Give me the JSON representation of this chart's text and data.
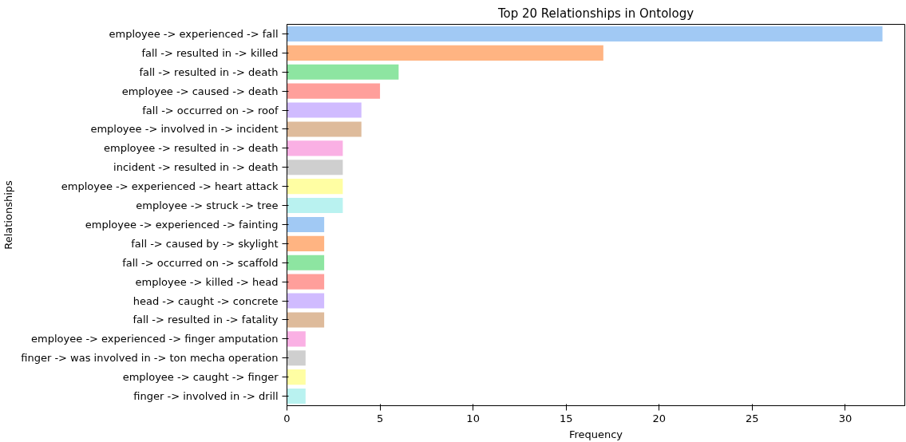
{
  "chart_data": {
    "type": "bar",
    "orientation": "horizontal",
    "title": "Top 20 Relationships in Ontology",
    "xlabel": "Frequency",
    "ylabel": "Relationships",
    "categories": [
      "employee -> experienced -> fall",
      "fall -> resulted in -> killed",
      "fall -> resulted in -> death",
      "employee -> caused -> death",
      "fall -> occurred on -> roof",
      "employee -> involved in -> incident",
      "employee -> resulted in -> death",
      "incident -> resulted in -> death",
      "employee -> experienced -> heart attack",
      "employee -> struck -> tree",
      "employee -> experienced -> fainting",
      "fall -> caused by -> skylight",
      "fall -> occurred on -> scaffold",
      "employee -> killed -> head",
      "head -> caught -> concrete",
      "fall -> resulted in -> fatality",
      "employee -> experienced -> finger amputation",
      "finger -> was involved in -> ton mecha operation",
      "employee -> caught -> finger",
      "finger -> involved in -> drill"
    ],
    "values": [
      32,
      17,
      6,
      5,
      4,
      4,
      3,
      3,
      3,
      3,
      2,
      2,
      2,
      2,
      2,
      2,
      1,
      1,
      1,
      1
    ],
    "colors": [
      "#a1c9f4",
      "#ffb482",
      "#8de5a1",
      "#ff9f9b",
      "#d0bbff",
      "#debb9b",
      "#fab0e4",
      "#cfcfcf",
      "#fffea3",
      "#b9f2f0",
      "#a1c9f4",
      "#ffb482",
      "#8de5a1",
      "#ff9f9b",
      "#d0bbff",
      "#debb9b",
      "#fab0e4",
      "#cfcfcf",
      "#fffea3",
      "#b9f2f0"
    ],
    "xlim": [
      0,
      33.2
    ],
    "xticks": [
      0,
      5,
      10,
      15,
      20,
      25,
      30
    ],
    "grid": false
  }
}
